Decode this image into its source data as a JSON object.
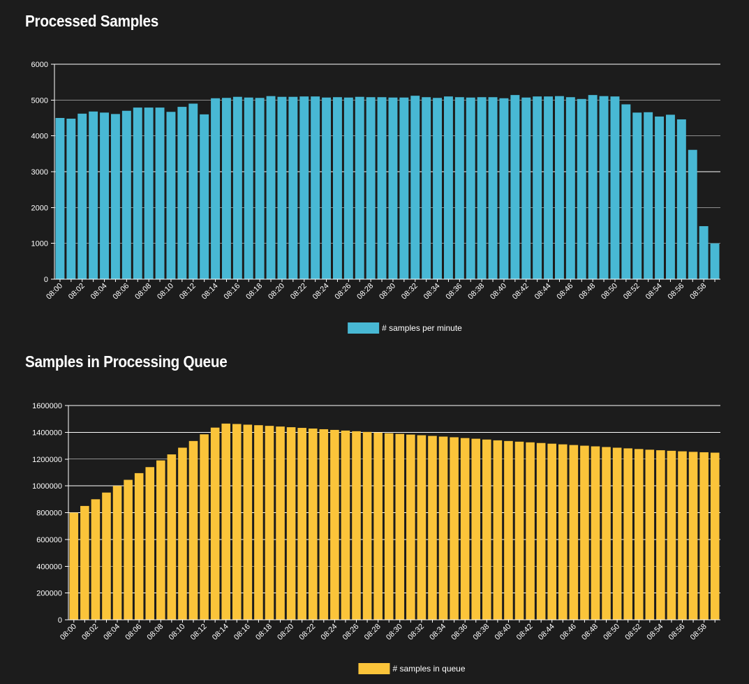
{
  "processed_title": "Processed Samples",
  "queue_title": "Samples in Processing Queue",
  "chart_data": [
    {
      "type": "bar",
      "title": "Processed Samples",
      "legend": "# samples per minute",
      "legend_position": "bottom",
      "color": "#48b8d4",
      "categories": [
        "08:00",
        "08:01",
        "08:02",
        "08:03",
        "08:04",
        "08:05",
        "08:06",
        "08:07",
        "08:08",
        "08:09",
        "08:10",
        "08:11",
        "08:12",
        "08:13",
        "08:14",
        "08:15",
        "08:16",
        "08:17",
        "08:18",
        "08:19",
        "08:20",
        "08:21",
        "08:22",
        "08:23",
        "08:24",
        "08:25",
        "08:26",
        "08:27",
        "08:28",
        "08:29",
        "08:30",
        "08:31",
        "08:32",
        "08:33",
        "08:34",
        "08:35",
        "08:36",
        "08:37",
        "08:38",
        "08:39",
        "08:40",
        "08:41",
        "08:42",
        "08:43",
        "08:44",
        "08:45",
        "08:46",
        "08:47",
        "08:48",
        "08:49",
        "08:50",
        "08:51",
        "08:52",
        "08:53",
        "08:54",
        "08:55",
        "08:56",
        "08:57",
        "08:58",
        "08:59"
      ],
      "tick_labels": [
        "08:00",
        "08:02",
        "08:04",
        "08:06",
        "08:08",
        "08:10",
        "08:12",
        "08:14",
        "08:16",
        "08:18",
        "08:20",
        "08:22",
        "08:24",
        "08:26",
        "08:28",
        "08:30",
        "08:32",
        "08:34",
        "08:36",
        "08:38",
        "08:40",
        "08:42",
        "08:44",
        "08:46",
        "08:48",
        "08:50",
        "08:52",
        "08:54",
        "08:56",
        "08:58"
      ],
      "values": [
        4500,
        4480,
        4620,
        4680,
        4650,
        4610,
        4700,
        4790,
        4790,
        4790,
        4670,
        4810,
        4900,
        4600,
        5050,
        5060,
        5090,
        5070,
        5060,
        5110,
        5090,
        5090,
        5100,
        5100,
        5070,
        5080,
        5070,
        5090,
        5080,
        5080,
        5070,
        5070,
        5120,
        5080,
        5060,
        5100,
        5080,
        5070,
        5080,
        5080,
        5050,
        5140,
        5070,
        5100,
        5100,
        5110,
        5080,
        5030,
        5140,
        5110,
        5100,
        4880,
        4650,
        4660,
        4540,
        4590,
        4460,
        3610,
        1480,
        1000
      ],
      "yticks": [
        "0",
        "1000",
        "2000",
        "3000",
        "4000",
        "5000",
        "6000"
      ],
      "ylim": [
        0,
        6000
      ],
      "grid": true
    },
    {
      "type": "bar",
      "title": "Samples in Processing Queue",
      "legend": "# samples in queue",
      "legend_position": "bottom",
      "color": "#fbc43a",
      "categories": [
        "08:00",
        "08:01",
        "08:02",
        "08:03",
        "08:04",
        "08:05",
        "08:06",
        "08:07",
        "08:08",
        "08:09",
        "08:10",
        "08:11",
        "08:12",
        "08:13",
        "08:14",
        "08:15",
        "08:16",
        "08:17",
        "08:18",
        "08:19",
        "08:20",
        "08:21",
        "08:22",
        "08:23",
        "08:24",
        "08:25",
        "08:26",
        "08:27",
        "08:28",
        "08:29",
        "08:30",
        "08:31",
        "08:32",
        "08:33",
        "08:34",
        "08:35",
        "08:36",
        "08:37",
        "08:38",
        "08:39",
        "08:40",
        "08:41",
        "08:42",
        "08:43",
        "08:44",
        "08:45",
        "08:46",
        "08:47",
        "08:48",
        "08:49",
        "08:50",
        "08:51",
        "08:52",
        "08:53",
        "08:54",
        "08:55",
        "08:56",
        "08:57",
        "08:58",
        "08:59"
      ],
      "tick_labels": [
        "08:00",
        "08:02",
        "08:04",
        "08:06",
        "08:08",
        "08:10",
        "08:12",
        "08:14",
        "08:16",
        "08:18",
        "08:20",
        "08:22",
        "08:24",
        "08:26",
        "08:28",
        "08:30",
        "08:32",
        "08:34",
        "08:36",
        "08:38",
        "08:40",
        "08:42",
        "08:44",
        "08:46",
        "08:48",
        "08:50",
        "08:52",
        "08:54",
        "08:56",
        "08:58"
      ],
      "values": [
        800000,
        850000,
        900000,
        950000,
        1000000,
        1045000,
        1095000,
        1140000,
        1190000,
        1235000,
        1285000,
        1335000,
        1385000,
        1435000,
        1465000,
        1462000,
        1457000,
        1453000,
        1448000,
        1443000,
        1438000,
        1433000,
        1428000,
        1423000,
        1418000,
        1413000,
        1408000,
        1403000,
        1398000,
        1393000,
        1388000,
        1383000,
        1378000,
        1373000,
        1368000,
        1363000,
        1357000,
        1352000,
        1346000,
        1340000,
        1335000,
        1330000,
        1325000,
        1320000,
        1315000,
        1310000,
        1305000,
        1300000,
        1295000,
        1290000,
        1285000,
        1280000,
        1275000,
        1270000,
        1266000,
        1262000,
        1258000,
        1254000,
        1251000,
        1248000
      ],
      "yticks": [
        "0",
        "200000",
        "400000",
        "600000",
        "800000",
        "1000000",
        "1200000",
        "1400000",
        "1600000"
      ],
      "ylim": [
        0,
        1600000
      ],
      "grid": true
    }
  ]
}
